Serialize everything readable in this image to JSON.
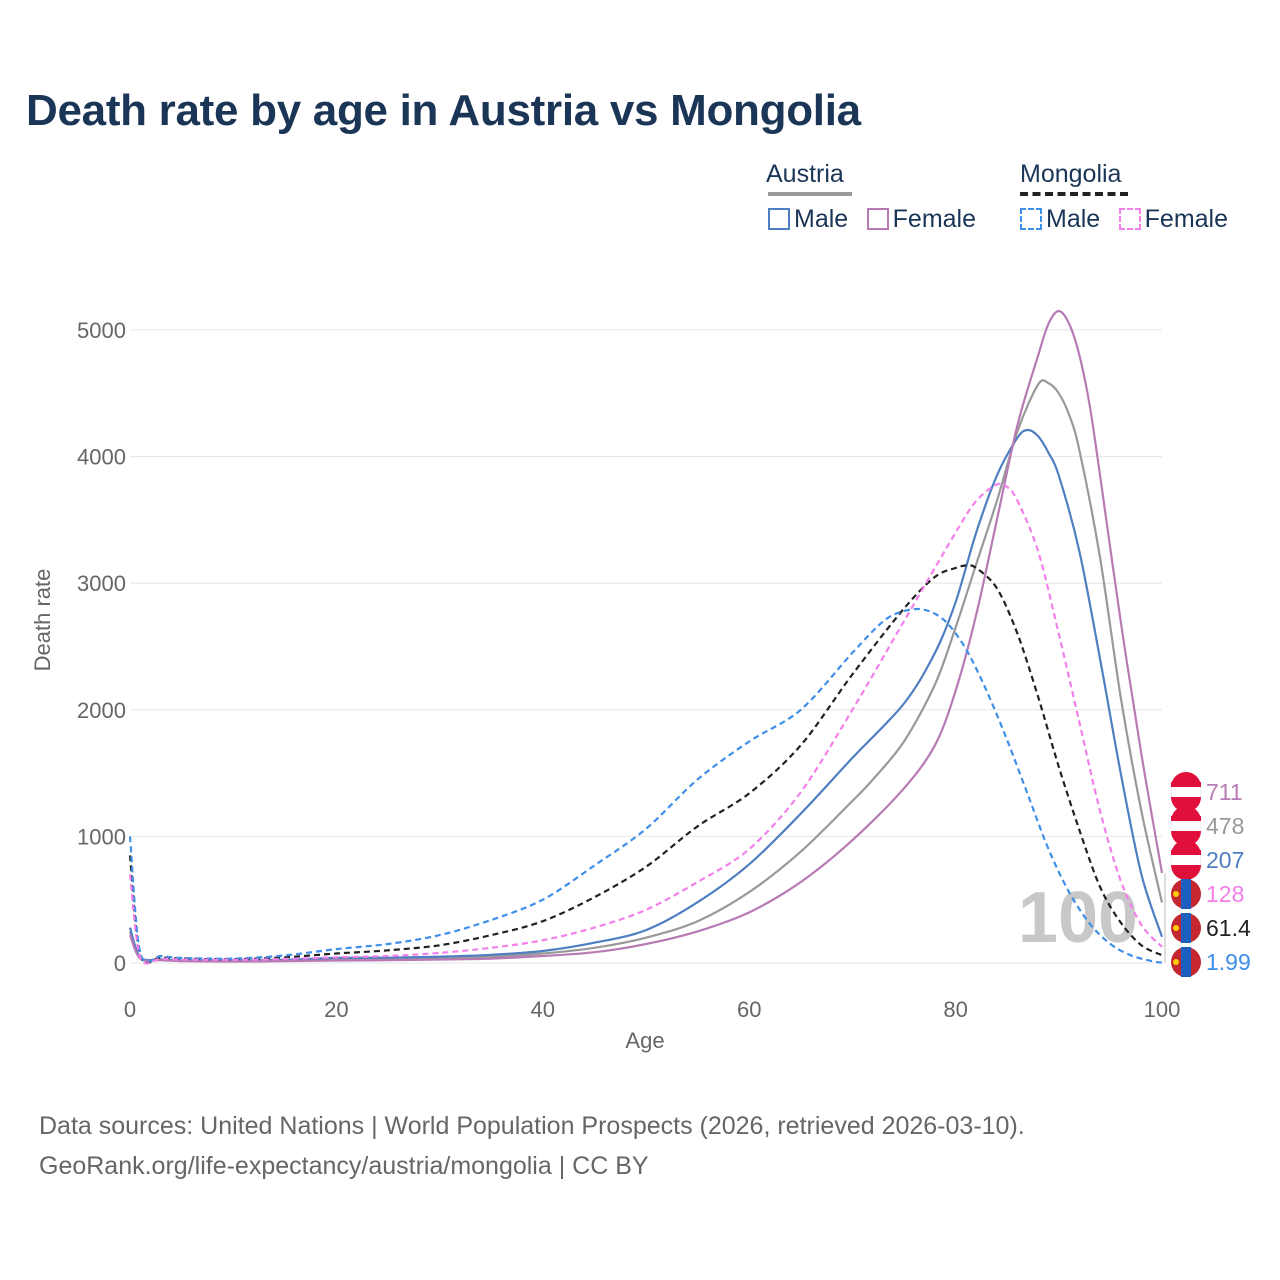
{
  "title": "Death rate by age in Austria vs Mongolia",
  "legend": {
    "groups": [
      {
        "country": "Austria",
        "style": "solid",
        "head_color": "#999999",
        "items": [
          {
            "label": "Male",
            "color": "#4f7fc0"
          },
          {
            "label": "Female",
            "color": "#b87ab5"
          }
        ]
      },
      {
        "country": "Mongolia",
        "style": "dashed",
        "head_color": "#222222",
        "items": [
          {
            "label": "Male",
            "color": "#3f8fe8"
          },
          {
            "label": "Female",
            "color": "#f27fea"
          }
        ]
      }
    ]
  },
  "chart_data": {
    "type": "line",
    "xlabel": "Age",
    "ylabel": "Death rate",
    "xlim": [
      0,
      100
    ],
    "ylim": [
      0,
      5000
    ],
    "xticks": [
      0,
      20,
      40,
      60,
      80,
      100
    ],
    "yticks": [
      0,
      1000,
      2000,
      3000,
      4000,
      5000
    ],
    "grid": true,
    "annotation": "100",
    "series": [
      {
        "name": "Austria Total",
        "color": "#999999",
        "dash": false,
        "points": [
          [
            0,
            250
          ],
          [
            1,
            40
          ],
          [
            3,
            25
          ],
          [
            5,
            18
          ],
          [
            10,
            15
          ],
          [
            15,
            20
          ],
          [
            20,
            30
          ],
          [
            25,
            32
          ],
          [
            30,
            40
          ],
          [
            35,
            50
          ],
          [
            40,
            75
          ],
          [
            45,
            120
          ],
          [
            50,
            200
          ],
          [
            55,
            330
          ],
          [
            60,
            560
          ],
          [
            65,
            880
          ],
          [
            70,
            1280
          ],
          [
            72,
            1450
          ],
          [
            75,
            1750
          ],
          [
            78,
            2200
          ],
          [
            80,
            2650
          ],
          [
            82,
            3150
          ],
          [
            84,
            3650
          ],
          [
            86,
            4200
          ],
          [
            88,
            4570
          ],
          [
            89,
            4580
          ],
          [
            90,
            4500
          ],
          [
            91,
            4330
          ],
          [
            92,
            4050
          ],
          [
            94,
            3200
          ],
          [
            96,
            2100
          ],
          [
            98,
            1200
          ],
          [
            100,
            478
          ]
        ],
        "end_label": "478"
      },
      {
        "name": "Austria Male",
        "color": "#4f7fc0",
        "dash": false,
        "points": [
          [
            0,
            280
          ],
          [
            1,
            45
          ],
          [
            3,
            28
          ],
          [
            5,
            20
          ],
          [
            10,
            18
          ],
          [
            15,
            25
          ],
          [
            20,
            40
          ],
          [
            25,
            42
          ],
          [
            30,
            50
          ],
          [
            35,
            65
          ],
          [
            40,
            95
          ],
          [
            45,
            160
          ],
          [
            50,
            260
          ],
          [
            55,
            480
          ],
          [
            60,
            780
          ],
          [
            65,
            1180
          ],
          [
            70,
            1620
          ],
          [
            75,
            2050
          ],
          [
            78,
            2450
          ],
          [
            80,
            2850
          ],
          [
            82,
            3400
          ],
          [
            84,
            3850
          ],
          [
            86,
            4150
          ],
          [
            87,
            4210
          ],
          [
            88,
            4160
          ],
          [
            89,
            4030
          ],
          [
            90,
            3850
          ],
          [
            92,
            3250
          ],
          [
            94,
            2400
          ],
          [
            96,
            1500
          ],
          [
            98,
            700
          ],
          [
            100,
            207
          ]
        ],
        "end_label": "207"
      },
      {
        "name": "Austria Female",
        "color": "#b87ab5",
        "dash": false,
        "points": [
          [
            0,
            220
          ],
          [
            1,
            35
          ],
          [
            3,
            22
          ],
          [
            5,
            15
          ],
          [
            10,
            12
          ],
          [
            15,
            15
          ],
          [
            20,
            20
          ],
          [
            25,
            22
          ],
          [
            30,
            28
          ],
          [
            35,
            35
          ],
          [
            40,
            55
          ],
          [
            45,
            85
          ],
          [
            50,
            150
          ],
          [
            55,
            250
          ],
          [
            60,
            400
          ],
          [
            65,
            640
          ],
          [
            70,
            970
          ],
          [
            75,
            1380
          ],
          [
            78,
            1720
          ],
          [
            80,
            2150
          ],
          [
            82,
            2750
          ],
          [
            84,
            3500
          ],
          [
            86,
            4250
          ],
          [
            88,
            4800
          ],
          [
            89,
            5050
          ],
          [
            90,
            5150
          ],
          [
            91,
            5050
          ],
          [
            92,
            4800
          ],
          [
            93,
            4400
          ],
          [
            94,
            3850
          ],
          [
            96,
            2700
          ],
          [
            98,
            1650
          ],
          [
            100,
            711
          ]
        ],
        "end_label": "711"
      },
      {
        "name": "Mongolia Total",
        "color": "#222222",
        "dash": true,
        "points": [
          [
            0,
            850
          ],
          [
            1,
            60
          ],
          [
            3,
            45
          ],
          [
            5,
            35
          ],
          [
            10,
            30
          ],
          [
            15,
            45
          ],
          [
            20,
            75
          ],
          [
            25,
            100
          ],
          [
            30,
            140
          ],
          [
            35,
            220
          ],
          [
            40,
            330
          ],
          [
            45,
            520
          ],
          [
            50,
            760
          ],
          [
            55,
            1080
          ],
          [
            60,
            1340
          ],
          [
            65,
            1720
          ],
          [
            70,
            2280
          ],
          [
            75,
            2800
          ],
          [
            78,
            3050
          ],
          [
            80,
            3120
          ],
          [
            81,
            3140
          ],
          [
            82,
            3120
          ],
          [
            84,
            2960
          ],
          [
            86,
            2600
          ],
          [
            88,
            2100
          ],
          [
            90,
            1550
          ],
          [
            92,
            1050
          ],
          [
            94,
            600
          ],
          [
            96,
            320
          ],
          [
            98,
            140
          ],
          [
            100,
            61.4
          ]
        ],
        "end_label": "61.4"
      },
      {
        "name": "Mongolia Male",
        "color": "#3f8fe8",
        "dash": true,
        "points": [
          [
            0,
            1000
          ],
          [
            1,
            80
          ],
          [
            3,
            55
          ],
          [
            5,
            40
          ],
          [
            10,
            35
          ],
          [
            15,
            60
          ],
          [
            20,
            110
          ],
          [
            25,
            150
          ],
          [
            30,
            220
          ],
          [
            35,
            340
          ],
          [
            40,
            500
          ],
          [
            45,
            770
          ],
          [
            50,
            1060
          ],
          [
            55,
            1450
          ],
          [
            60,
            1750
          ],
          [
            65,
            2000
          ],
          [
            70,
            2450
          ],
          [
            73,
            2700
          ],
          [
            75,
            2780
          ],
          [
            77,
            2790
          ],
          [
            79,
            2700
          ],
          [
            81,
            2480
          ],
          [
            83,
            2150
          ],
          [
            85,
            1760
          ],
          [
            87,
            1330
          ],
          [
            89,
            900
          ],
          [
            91,
            560
          ],
          [
            93,
            310
          ],
          [
            95,
            150
          ],
          [
            97,
            60
          ],
          [
            99,
            15
          ],
          [
            100,
            1.99
          ]
        ],
        "end_label": "1.99"
      },
      {
        "name": "Mongolia Female",
        "color": "#f27fea",
        "dash": true,
        "points": [
          [
            0,
            700
          ],
          [
            1,
            45
          ],
          [
            3,
            35
          ],
          [
            5,
            28
          ],
          [
            10,
            25
          ],
          [
            15,
            32
          ],
          [
            20,
            45
          ],
          [
            25,
            55
          ],
          [
            30,
            80
          ],
          [
            35,
            120
          ],
          [
            40,
            180
          ],
          [
            45,
            280
          ],
          [
            50,
            420
          ],
          [
            55,
            640
          ],
          [
            60,
            900
          ],
          [
            65,
            1350
          ],
          [
            70,
            2000
          ],
          [
            75,
            2700
          ],
          [
            80,
            3400
          ],
          [
            82,
            3650
          ],
          [
            84,
            3780
          ],
          [
            85,
            3760
          ],
          [
            86,
            3650
          ],
          [
            88,
            3250
          ],
          [
            90,
            2600
          ],
          [
            92,
            1900
          ],
          [
            94,
            1200
          ],
          [
            96,
            650
          ],
          [
            98,
            300
          ],
          [
            100,
            128
          ]
        ],
        "end_label": "128"
      }
    ]
  },
  "footer": {
    "line1": "Data sources: United Nations | World Population Prospects (2026, retrieved 2026-03-10).",
    "line2": "GeoRank.org/life-expectancy/austria/mongolia | CC BY"
  }
}
